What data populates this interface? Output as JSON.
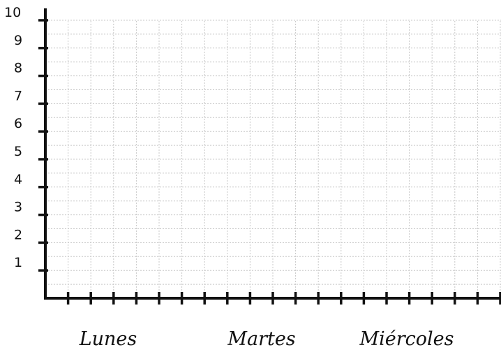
{
  "chart_data": {
    "type": "bar",
    "categories": [
      "Lunes",
      "Martes",
      "Miércoles"
    ],
    "series": [],
    "y_ticks": [
      "1",
      "2",
      "3",
      "4",
      "5",
      "6",
      "7",
      "8",
      "9",
      "10"
    ],
    "ylim": [
      0,
      10
    ],
    "grid": true,
    "colors": {
      "axis": "#111111",
      "grid": "#c8c8c8",
      "text": "#111111"
    }
  }
}
